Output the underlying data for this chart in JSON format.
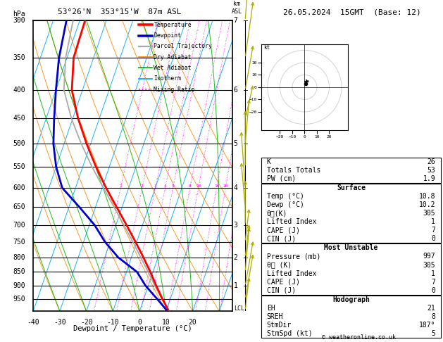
{
  "title_left": "53°26'N  353°15'W  87m ASL",
  "title_right": "26.05.2024  15GMT  (Base: 12)",
  "xlabel": "Dewpoint / Temperature (°C)",
  "ylabel_left": "hPa",
  "x_min": -40,
  "x_max": 35,
  "x_ticks": [
    -40,
    -30,
    -20,
    -10,
    0,
    10,
    20
  ],
  "p_min": 300,
  "p_max": 1000,
  "skew_factor": 45,
  "color_temp": "#ff0000",
  "color_dewp": "#0000cc",
  "color_parcel": "#aaaaaa",
  "color_dry_adiabat": "#ff8800",
  "color_wet_adiabat": "#00bb00",
  "color_isotherm": "#00aaff",
  "color_mixing": "#ff00ff",
  "color_wind": "#aaaa00",
  "background": "#ffffff",
  "temp_profile_p": [
    997,
    950,
    900,
    850,
    800,
    750,
    700,
    650,
    600,
    550,
    500,
    450,
    400,
    350,
    300
  ],
  "temp_profile_t": [
    10.8,
    7.0,
    3.0,
    -1.0,
    -5.5,
    -10.5,
    -16.0,
    -22.0,
    -28.5,
    -35.0,
    -41.5,
    -48.0,
    -54.0,
    -57.5,
    -58.0
  ],
  "dewp_profile_p": [
    997,
    950,
    900,
    850,
    800,
    750,
    700,
    650,
    600,
    550,
    500,
    450,
    400,
    350,
    300
  ],
  "dewp_profile_t": [
    10.2,
    5.0,
    -1.0,
    -6.0,
    -15.0,
    -22.0,
    -28.0,
    -36.0,
    -45.0,
    -50.0,
    -54.0,
    -57.0,
    -60.0,
    -63.0,
    -65.0
  ],
  "parcel_profile_p": [
    997,
    950,
    900,
    850,
    800,
    750,
    700,
    650,
    600,
    550,
    500,
    450,
    400,
    350,
    300
  ],
  "parcel_profile_t": [
    10.8,
    6.8,
    2.5,
    -1.8,
    -6.5,
    -11.5,
    -17.0,
    -23.0,
    -29.5,
    -36.5,
    -43.5,
    -50.5,
    -57.0,
    -60.5,
    -62.5
  ],
  "lcl_pressure": 990,
  "km_ticks": [
    1,
    2,
    3,
    4,
    5,
    6,
    7
  ],
  "km_pressures": [
    900,
    800,
    700,
    600,
    500,
    400,
    300
  ],
  "mixing_ratio_values": [
    1,
    2,
    3,
    4,
    5,
    8,
    10,
    16,
    20,
    28
  ],
  "indices": {
    "K": 26,
    "Totals_Totals": 53,
    "PW_cm": 1.9,
    "Surface_Temp": 10.8,
    "Surface_Dewp": 10.2,
    "Surface_ThetaE": 305,
    "Lifted_Index": 1,
    "CAPE": 7,
    "CIN": 0,
    "MU_Pressure": 997,
    "MU_ThetaE": 305,
    "MU_LI": 1,
    "MU_CAPE": 7,
    "MU_CIN": 0,
    "EH": 21,
    "SREH": 8,
    "StmDir": "187°",
    "StmSpd": 5
  },
  "wind_profile_p": [
    997,
    950,
    900,
    850,
    800,
    750,
    700,
    650,
    600,
    550,
    500,
    450,
    400,
    350,
    300
  ],
  "wind_u": [
    1,
    2,
    2,
    1,
    1,
    1,
    0,
    -1,
    -1,
    0,
    1,
    2,
    2,
    2,
    1
  ],
  "wind_v": [
    3,
    4,
    4,
    4,
    3,
    3,
    4,
    4,
    5,
    5,
    4,
    3,
    4,
    5,
    5
  ],
  "hodo_u": [
    1,
    2,
    3,
    2,
    1,
    1,
    1,
    2,
    2
  ],
  "hodo_v": [
    3,
    4,
    5,
    5,
    5,
    4,
    4,
    4,
    3
  ],
  "hodo_colors": [
    "black",
    "black",
    "black",
    "gray",
    "gray",
    "gray",
    "gray",
    "gray",
    "gray"
  ]
}
